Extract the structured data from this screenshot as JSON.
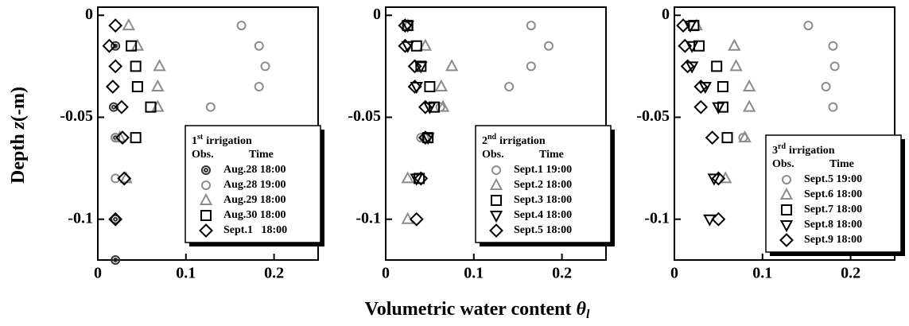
{
  "ylabel": {
    "text": "Depth",
    "symbol": "z",
    "unit": "(-m)"
  },
  "xlabel": {
    "text": "Volumetric water content",
    "symbol": "θ",
    "subscript": "l"
  },
  "chart_data": [
    {
      "type": "scatter",
      "xlim": [
        0,
        0.25
      ],
      "ylim": [
        -0.12,
        0.004
      ],
      "xticks": [
        0,
        0.1,
        0.2
      ],
      "yticks": [
        0,
        -0.05,
        -0.1
      ],
      "legend_title": {
        "ordinal": "1",
        "suffix": "st",
        "text": "irrigation"
      },
      "legend_headers": [
        "Obs.",
        "Time"
      ],
      "series": [
        {
          "name": "Aug.28 18:00",
          "marker": "double-circle",
          "color": "#333333",
          "x": [
            0.02,
            0.018,
            0.02,
            0.02,
            0.02
          ],
          "values": [
            -0.015,
            -0.045,
            -0.06,
            -0.1,
            -0.12
          ]
        },
        {
          "name": "Aug.28 19:00",
          "marker": "circle",
          "color": "#8c8c8c",
          "x": [
            0.163,
            0.183,
            0.19,
            0.183,
            0.128,
            0.02,
            0.02
          ],
          "values": [
            -0.005,
            -0.015,
            -0.025,
            -0.035,
            -0.045,
            -0.06,
            -0.08
          ]
        },
        {
          "name": "Aug.29 18:00",
          "marker": "triangle",
          "color": "#8c8c8c",
          "x": [
            0.035,
            0.045,
            0.07,
            0.068,
            0.068,
            0.025,
            0.032
          ],
          "values": [
            -0.005,
            -0.015,
            -0.025,
            -0.035,
            -0.045,
            -0.06,
            -0.08
          ]
        },
        {
          "name": "Aug.30 18:00",
          "marker": "square",
          "color": "#000000",
          "x": [
            0.038,
            0.043,
            0.045,
            0.06,
            0.043
          ],
          "values": [
            -0.015,
            -0.025,
            -0.035,
            -0.045,
            -0.06
          ]
        },
        {
          "name": "Sept.1   18:00",
          "marker": "diamond",
          "color": "#000000",
          "x": [
            0.02,
            0.013,
            0.02,
            0.017,
            0.027,
            0.028,
            0.03,
            0.02
          ],
          "values": [
            -0.005,
            -0.015,
            -0.025,
            -0.035,
            -0.045,
            -0.06,
            -0.08,
            -0.1
          ]
        }
      ]
    },
    {
      "type": "scatter",
      "xlim": [
        0,
        0.25
      ],
      "ylim": [
        -0.12,
        0.004
      ],
      "xticks": [
        0,
        0.1,
        0.2
      ],
      "yticks": [
        0,
        -0.05,
        -0.1
      ],
      "legend_title": {
        "ordinal": "2",
        "suffix": "nd",
        "text": "irrigation"
      },
      "legend_headers": [
        "Obs.",
        "Time"
      ],
      "series": [
        {
          "name": "Sept.1 19:00",
          "marker": "circle",
          "color": "#8c8c8c",
          "x": [
            0.165,
            0.185,
            0.165,
            0.14,
            0.062,
            0.04
          ],
          "values": [
            -0.005,
            -0.015,
            -0.025,
            -0.035,
            -0.045,
            -0.06
          ]
        },
        {
          "name": "Sept.2 18:00",
          "marker": "triangle",
          "color": "#8c8c8c",
          "x": [
            0.025,
            0.045,
            0.075,
            0.063,
            0.065,
            0.045,
            0.025,
            0.025
          ],
          "values": [
            -0.005,
            -0.015,
            -0.025,
            -0.035,
            -0.045,
            -0.06,
            -0.08,
            -0.1
          ]
        },
        {
          "name": "Sept.3 18:00",
          "marker": "square",
          "color": "#000000",
          "x": [
            0.025,
            0.035,
            0.04,
            0.05,
            0.055,
            0.048,
            0.038
          ],
          "values": [
            -0.005,
            -0.015,
            -0.025,
            -0.035,
            -0.045,
            -0.06,
            -0.08
          ]
        },
        {
          "name": "Sept.4 18:00",
          "marker": "triangle-down",
          "color": "#000000",
          "x": [
            0.025,
            0.025,
            0.04,
            0.035,
            0.05,
            0.048,
            0.035
          ],
          "values": [
            -0.005,
            -0.015,
            -0.025,
            -0.035,
            -0.045,
            -0.06,
            -0.08
          ]
        },
        {
          "name": "Sept.5 18:00",
          "marker": "diamond",
          "color": "#000000",
          "x": [
            0.022,
            0.022,
            0.033,
            0.033,
            0.045,
            0.045,
            0.04,
            0.035
          ],
          "values": [
            -0.005,
            -0.015,
            -0.025,
            -0.035,
            -0.045,
            -0.06,
            -0.08,
            -0.1
          ]
        }
      ]
    },
    {
      "type": "scatter",
      "xlim": [
        0,
        0.25
      ],
      "ylim": [
        -0.12,
        0.004
      ],
      "xticks": [
        0,
        0.1,
        0.2
      ],
      "yticks": [
        0,
        -0.05,
        -0.1
      ],
      "legend_title": {
        "ordinal": "3",
        "suffix": "rd",
        "text": "irrigation"
      },
      "legend_headers": [
        "Obs.",
        "Time"
      ],
      "series": [
        {
          "name": "Sept.5 19:00",
          "marker": "circle",
          "color": "#8c8c8c",
          "x": [
            0.152,
            0.18,
            0.182,
            0.172,
            0.18,
            0.078
          ],
          "values": [
            -0.005,
            -0.015,
            -0.025,
            -0.035,
            -0.045,
            -0.06
          ]
        },
        {
          "name": "Sept.6 18:00",
          "marker": "triangle",
          "color": "#8c8c8c",
          "x": [
            0.025,
            0.068,
            0.07,
            0.085,
            0.085,
            0.08,
            0.058
          ],
          "values": [
            -0.005,
            -0.015,
            -0.025,
            -0.035,
            -0.045,
            -0.06,
            -0.08
          ]
        },
        {
          "name": "Sept.7 18:00",
          "marker": "square",
          "color": "#000000",
          "x": [
            0.022,
            0.028,
            0.048,
            0.055,
            0.055,
            0.06
          ],
          "values": [
            -0.005,
            -0.015,
            -0.025,
            -0.035,
            -0.045,
            -0.06
          ]
        },
        {
          "name": "Sept.8 18:00",
          "marker": "triangle-down",
          "color": "#000000",
          "x": [
            0.018,
            0.02,
            0.02,
            0.035,
            0.05,
            0.045,
            0.04
          ],
          "values": [
            -0.005,
            -0.015,
            -0.025,
            -0.035,
            -0.045,
            -0.08,
            -0.1
          ]
        },
        {
          "name": "Sept.9 18:00",
          "marker": "diamond",
          "color": "#000000",
          "x": [
            0.01,
            0.012,
            0.015,
            0.03,
            0.03,
            0.043,
            0.05,
            0.05
          ],
          "values": [
            -0.005,
            -0.015,
            -0.025,
            -0.035,
            -0.045,
            -0.06,
            -0.08,
            -0.1
          ]
        }
      ]
    }
  ]
}
